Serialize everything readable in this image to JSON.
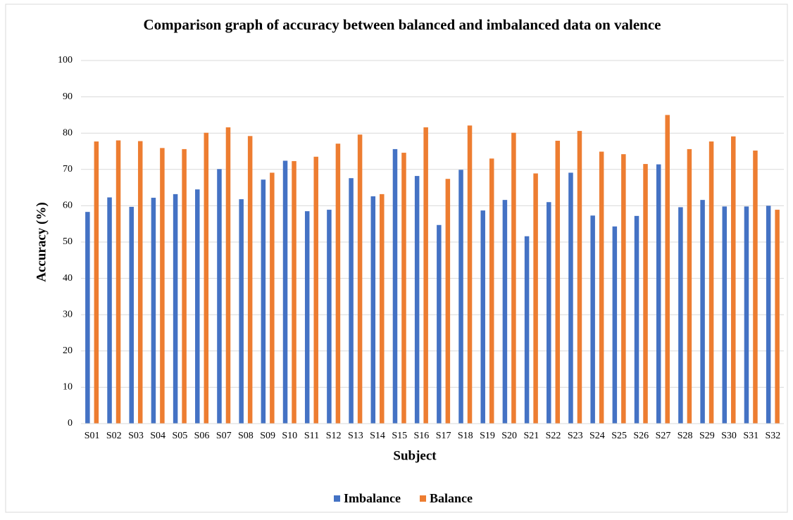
{
  "chart_data": {
    "type": "bar",
    "title": "Comparison graph of accuracy between balanced and imbalanced data on valence",
    "x_label": "Subject",
    "y_label": "Accuracy (%)",
    "categories": [
      "S01",
      "S02",
      "S03",
      "S04",
      "S05",
      "S06",
      "S07",
      "S08",
      "S09",
      "S10",
      "S11",
      "S12",
      "S13",
      "S14",
      "S15",
      "S16",
      "S17",
      "S18",
      "S19",
      "S20",
      "S21",
      "S22",
      "S23",
      "S24",
      "S25",
      "S26",
      "S27",
      "S28",
      "S29",
      "S30",
      "S31",
      "S32"
    ],
    "series": [
      {
        "name": "Imbalance",
        "color": "#4472c4",
        "values": [
          58.3,
          62.3,
          59.7,
          62.2,
          63.2,
          64.5,
          70.1,
          61.8,
          67.2,
          72.4,
          58.5,
          58.9,
          67.6,
          62.6,
          75.6,
          68.2,
          54.7,
          69.9,
          58.7,
          61.6,
          51.6,
          61.0,
          69.1,
          57.3,
          54.3,
          57.2,
          71.4,
          59.6,
          61.6,
          59.8,
          59.8,
          60.0
        ]
      },
      {
        "name": "Balance",
        "color": "#ed7d31",
        "values": [
          77.7,
          78.0,
          77.8,
          75.9,
          75.6,
          80.1,
          81.6,
          79.2,
          69.1,
          72.3,
          73.5,
          77.1,
          79.6,
          63.2,
          74.6,
          81.6,
          67.4,
          82.1,
          73.0,
          80.1,
          68.9,
          77.9,
          80.6,
          74.9,
          74.2,
          71.5,
          85.0,
          75.6,
          77.7,
          79.1,
          75.2,
          58.9
        ]
      }
    ],
    "ylim": [
      0,
      100
    ],
    "yticks": [
      0,
      10,
      20,
      30,
      40,
      50,
      60,
      70,
      80,
      90,
      100
    ],
    "grid": true,
    "legend": "bottom"
  }
}
